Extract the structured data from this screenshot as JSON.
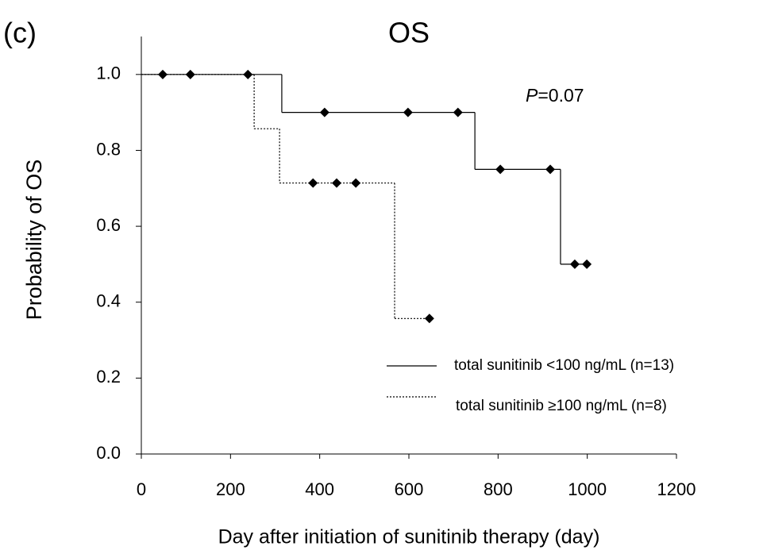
{
  "chart_data": {
    "type": "step",
    "panel_label": "(c)",
    "title": "OS",
    "x_label": "Day after initiation of sunitinib therapy  (day)",
    "y_label": "Probability of OS",
    "annotation": {
      "italic": "P",
      "text": "=0.07"
    },
    "xlim": [
      0,
      1200
    ],
    "ylim": [
      0,
      1.1
    ],
    "xticks": [
      0,
      200,
      400,
      600,
      800,
      1000,
      1200
    ],
    "yticks": [
      {
        "value": 0,
        "label": "0.0"
      },
      0.2,
      0.4,
      0.6,
      0.8,
      {
        "value": 1,
        "label": "1.0"
      }
    ],
    "legend": "lower right",
    "series": [
      {
        "name": "total sunitinib <100 ng/mL (n=13)",
        "color": "#000000",
        "dash": "solid",
        "x": [
          0,
          315,
          748,
          940,
          1000
        ],
        "values": [
          1.0,
          0.9,
          0.75,
          0.5,
          0.5
        ],
        "censored": {
          "x": [
            48,
            110,
            239,
            411,
            598,
            710,
            805,
            917,
            972,
            999
          ],
          "values": [
            1.0,
            1.0,
            1.0,
            0.9,
            0.9,
            0.9,
            0.75,
            0.75,
            0.5,
            0.5
          ]
        }
      },
      {
        "name": "total sunitinib ≥100 ng/mL (n=8)",
        "color": "#000000",
        "dash": "dotted",
        "x": [
          0,
          253,
          310,
          568,
          645
        ],
        "values": [
          1.0,
          0.857,
          0.714,
          0.357,
          0.357
        ],
        "censored": {
          "x": [
            385,
            438,
            481,
            646
          ],
          "values": [
            0.714,
            0.714,
            0.714,
            0.357
          ]
        }
      }
    ]
  }
}
